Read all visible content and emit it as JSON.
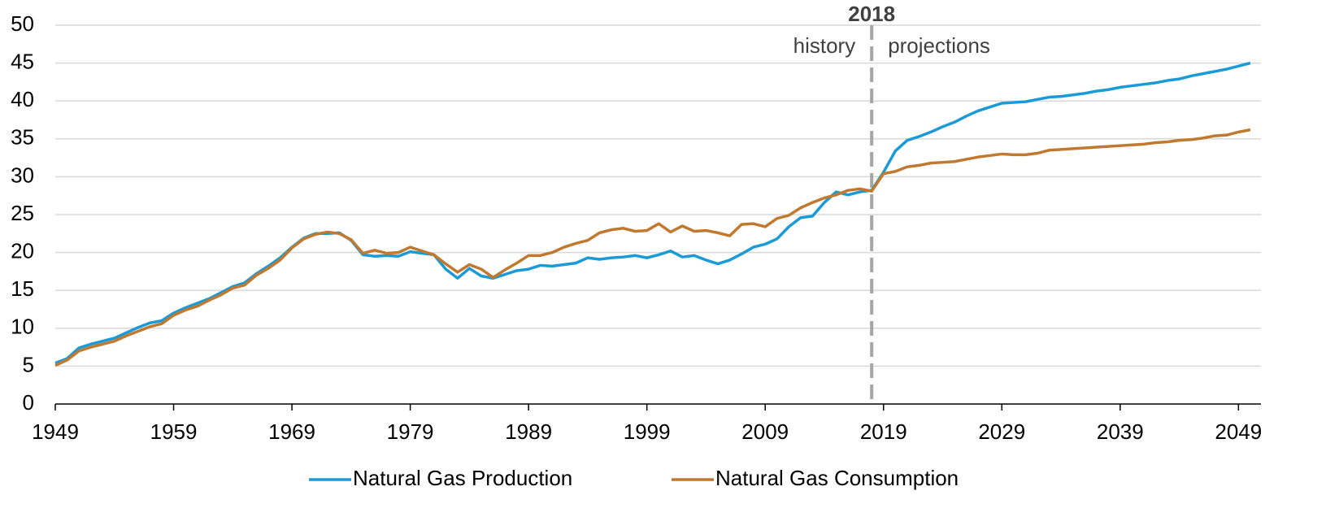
{
  "chart_data": {
    "type": "line",
    "x": [
      1949,
      1950,
      1951,
      1952,
      1953,
      1954,
      1955,
      1956,
      1957,
      1958,
      1959,
      1960,
      1961,
      1962,
      1963,
      1964,
      1965,
      1966,
      1967,
      1968,
      1969,
      1970,
      1971,
      1972,
      1973,
      1974,
      1975,
      1976,
      1977,
      1978,
      1979,
      1980,
      1981,
      1982,
      1983,
      1984,
      1985,
      1986,
      1987,
      1988,
      1989,
      1990,
      1991,
      1992,
      1993,
      1994,
      1995,
      1996,
      1997,
      1998,
      1999,
      2000,
      2001,
      2002,
      2003,
      2004,
      2005,
      2006,
      2007,
      2008,
      2009,
      2010,
      2011,
      2012,
      2013,
      2014,
      2015,
      2016,
      2017,
      2018,
      2019,
      2020,
      2021,
      2022,
      2023,
      2024,
      2025,
      2026,
      2027,
      2028,
      2029,
      2030,
      2031,
      2032,
      2033,
      2034,
      2035,
      2036,
      2037,
      2038,
      2039,
      2040,
      2041,
      2042,
      2043,
      2044,
      2045,
      2046,
      2047,
      2048,
      2049,
      2050
    ],
    "series": [
      {
        "name": "Natural Gas Production",
        "color": "#1a9ad6",
        "values": [
          5.4,
          6.0,
          7.4,
          7.9,
          8.3,
          8.7,
          9.4,
          10.1,
          10.7,
          11.0,
          12.0,
          12.7,
          13.3,
          13.9,
          14.7,
          15.5,
          16.0,
          17.2,
          18.2,
          19.3,
          20.7,
          21.9,
          22.5,
          22.5,
          22.6,
          21.6,
          19.7,
          19.5,
          19.6,
          19.5,
          20.1,
          19.9,
          19.7,
          17.8,
          16.6,
          17.9,
          16.9,
          16.6,
          17.1,
          17.6,
          17.8,
          18.3,
          18.2,
          18.4,
          18.6,
          19.3,
          19.1,
          19.3,
          19.4,
          19.6,
          19.3,
          19.7,
          20.2,
          19.4,
          19.6,
          19.0,
          18.5,
          19.0,
          19.8,
          20.7,
          21.1,
          21.8,
          23.4,
          24.6,
          24.8,
          26.6,
          28.0,
          27.6,
          28.0,
          28.2,
          30.6,
          33.4,
          34.8,
          35.3,
          35.9,
          36.6,
          37.2,
          38.0,
          38.7,
          39.2,
          39.7,
          39.8,
          39.9,
          40.2,
          40.5,
          40.6,
          40.8,
          41.0,
          41.3,
          41.5,
          41.8,
          42.0,
          42.2,
          42.4,
          42.7,
          42.9,
          43.3,
          43.6,
          43.9,
          44.2,
          44.6,
          45.0
        ]
      },
      {
        "name": "Natural Gas Consumption",
        "color": "#c0792f",
        "values": [
          5.1,
          5.8,
          7.0,
          7.5,
          7.9,
          8.3,
          9.0,
          9.6,
          10.2,
          10.6,
          11.7,
          12.4,
          12.9,
          13.7,
          14.4,
          15.3,
          15.7,
          17.0,
          17.9,
          19.0,
          20.6,
          21.8,
          22.4,
          22.7,
          22.5,
          21.7,
          19.9,
          20.3,
          19.9,
          20.0,
          20.7,
          20.2,
          19.7,
          18.5,
          17.4,
          18.4,
          17.8,
          16.7,
          17.7,
          18.6,
          19.6,
          19.6,
          20.0,
          20.7,
          21.2,
          21.6,
          22.6,
          23.0,
          23.2,
          22.8,
          22.9,
          23.8,
          22.7,
          23.5,
          22.8,
          22.9,
          22.6,
          22.2,
          23.7,
          23.8,
          23.4,
          24.5,
          24.9,
          25.9,
          26.6,
          27.2,
          27.6,
          28.2,
          28.4,
          28.1,
          30.4,
          30.7,
          31.3,
          31.5,
          31.8,
          31.9,
          32.0,
          32.3,
          32.6,
          32.8,
          33.0,
          32.9,
          32.9,
          33.1,
          33.5,
          33.6,
          33.7,
          33.8,
          33.9,
          34.0,
          34.1,
          34.2,
          34.3,
          34.5,
          34.6,
          34.8,
          34.9,
          35.1,
          35.4,
          35.5,
          35.9,
          36.2
        ]
      }
    ],
    "xlim": [
      1949,
      2050.9
    ],
    "xticks": [
      1949,
      1959,
      1969,
      1979,
      1989,
      1999,
      2009,
      2019,
      2029,
      2039,
      2049
    ],
    "ylim": [
      0,
      50
    ],
    "yticks": [
      0,
      5,
      10,
      15,
      20,
      25,
      30,
      35,
      40,
      45,
      50
    ],
    "grid": true,
    "legend": "bottom",
    "marker": {
      "x": 2018,
      "left": "history",
      "right": "projections"
    }
  }
}
